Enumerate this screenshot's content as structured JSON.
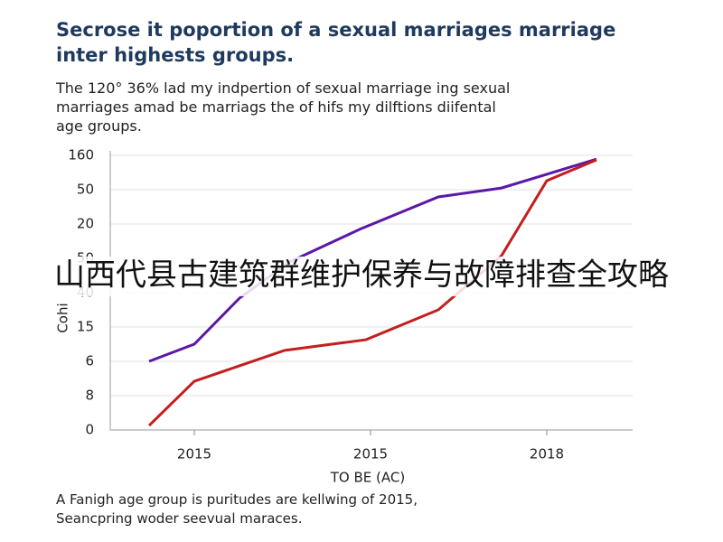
{
  "chart_data": {
    "type": "line",
    "title": "Secrose it poportion of a sexual marriages marriage inter highests groups.",
    "subtitle": "The 120° 36% lad my indpertion of sexual marriage ing sexual marriages amad be marriags the of hifs my dilftions diifental age groups.",
    "x_label": "TO BE (AC)",
    "y_label": "Cohi",
    "caption": "A Fanigh age group is puritudes are kellwing of 2015, Seancpring woder seevual maraces.",
    "annotation": "山西代县古建筑群维护保养与故障排查全攻略",
    "xlim": [
      0.14,
      11.7
    ],
    "xticks": [
      {
        "value": 2,
        "label": "2015"
      },
      {
        "value": 5.9,
        "label": "2015"
      },
      {
        "value": 9.8,
        "label": "2018"
      }
    ],
    "ylim": [
      0,
      8
    ],
    "yticks": [
      0,
      {
        "value": 1,
        "label": "8"
      },
      {
        "value": 2,
        "label": "6"
      },
      {
        "value": 3,
        "label": "15"
      },
      {
        "value": 4,
        "label": "40"
      },
      {
        "value": 5,
        "label": "50"
      },
      {
        "value": 6,
        "label": "20"
      },
      {
        "value": 7,
        "label": "50"
      },
      {
        "value": 8,
        "label": "160"
      }
    ],
    "grid": true,
    "series": [
      {
        "color": "#5b17a8",
        "x": [
          1,
          2,
          3,
          4.1,
          5.7,
          7.4,
          8.8,
          9.8,
          10.9
        ],
        "values": [
          2.0,
          2.5,
          3.84,
          4.89,
          5.87,
          6.79,
          7.05,
          7.45,
          7.89
        ]
      },
      {
        "color": "#c41e1e",
        "x": [
          1,
          2,
          3,
          4,
          5.8,
          7.4,
          8.8,
          9.8,
          10.9
        ],
        "values": [
          0.13,
          1.42,
          1.87,
          2.32,
          2.63,
          3.5,
          5.08,
          7.26,
          7.87
        ]
      }
    ]
  }
}
